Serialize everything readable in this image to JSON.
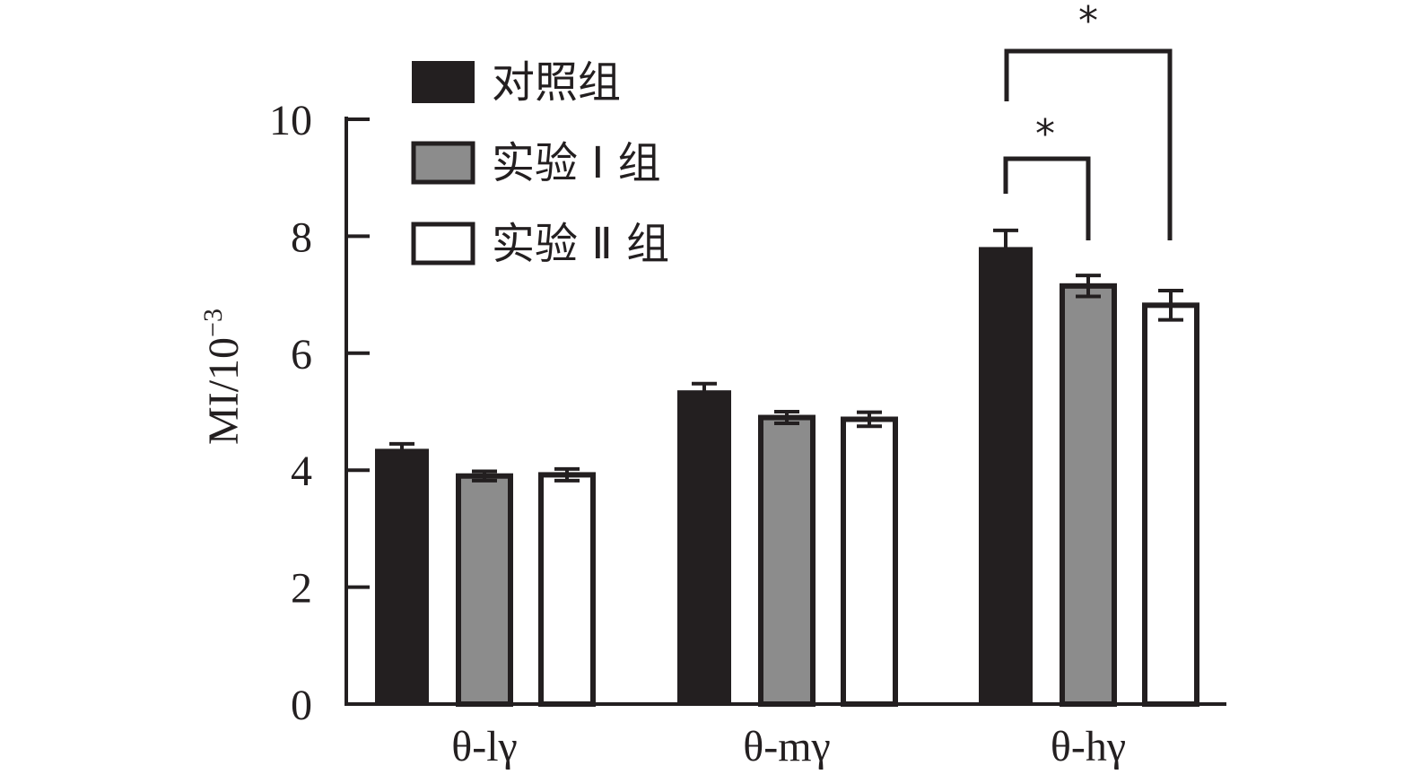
{
  "chart_data": {
    "type": "bar",
    "title": "",
    "xlabel": "",
    "ylabel": "MI/10",
    "ylabel_superscript": "−3",
    "ylim": [
      0,
      10
    ],
    "yticks": [
      "0",
      "2",
      "4",
      "6",
      "8",
      "10"
    ],
    "categories": [
      "θ-lγ",
      "θ-mγ",
      "θ-hγ"
    ],
    "series": [
      {
        "name": "对照组",
        "values": [
          4.35,
          5.35,
          7.8
        ],
        "errors": [
          0.1,
          0.13,
          0.3
        ],
        "color": "#231f20"
      },
      {
        "name": "实验Ⅰ组",
        "values": [
          3.9,
          4.9,
          7.15
        ],
        "errors": [
          0.08,
          0.1,
          0.18
        ],
        "color": "#8c8c8c"
      },
      {
        "name": "实验Ⅱ组",
        "values": [
          3.92,
          4.87,
          6.82
        ],
        "errors": [
          0.1,
          0.12,
          0.25
        ],
        "color": "#ffffff"
      }
    ],
    "legend": {
      "position": "top-left",
      "labels": [
        "对照组",
        "实验 I 组",
        "实验 Ⅱ 组"
      ]
    },
    "significance": [
      {
        "category": "θ-hγ",
        "from_series": 0,
        "to_series": 1,
        "label": "*"
      },
      {
        "category": "θ-hγ",
        "from_series": 0,
        "to_series": 2,
        "label": "*"
      }
    ],
    "grid": false,
    "outline_color": "#231f20"
  }
}
